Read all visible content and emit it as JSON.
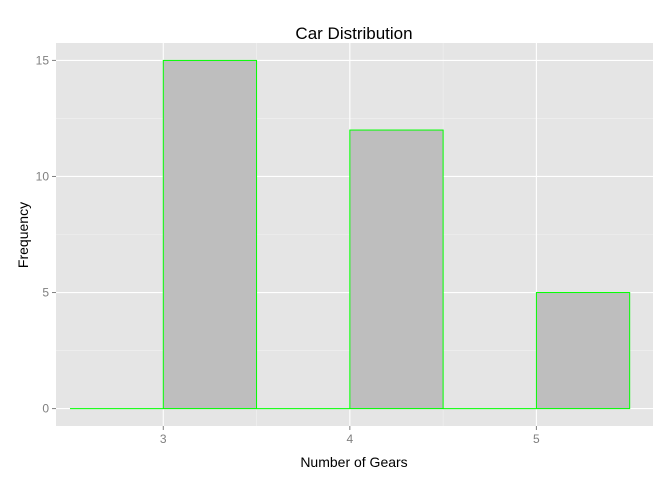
{
  "chart_data": {
    "type": "histogram",
    "title": "Car Distribution",
    "xlabel": "Number of Gears",
    "ylabel": "Frequency",
    "bins": [
      {
        "x_start": 2.5,
        "x_end": 3.0,
        "count": 0
      },
      {
        "x_start": 3.0,
        "x_end": 3.5,
        "count": 15
      },
      {
        "x_start": 3.5,
        "x_end": 4.0,
        "count": 0
      },
      {
        "x_start": 4.0,
        "x_end": 4.5,
        "count": 12
      },
      {
        "x_start": 4.5,
        "x_end": 5.0,
        "count": 0
      },
      {
        "x_start": 5.0,
        "x_end": 5.5,
        "count": 5
      }
    ],
    "xlim": [
      2.425,
      5.625
    ],
    "ylim": [
      -0.75,
      15.75
    ],
    "xticks": [
      3,
      4,
      5
    ],
    "yticks": [
      0,
      5,
      10,
      15
    ],
    "grid": true,
    "colors": {
      "panel_background": "#e5e5e5",
      "grid_major": "#ffffff",
      "grid_minor": "#f2f2f2",
      "bar_fill": "#bebebe",
      "bar_outline": "#00ff00",
      "tick_label": "#7f7f7f",
      "text": "#000000"
    }
  }
}
